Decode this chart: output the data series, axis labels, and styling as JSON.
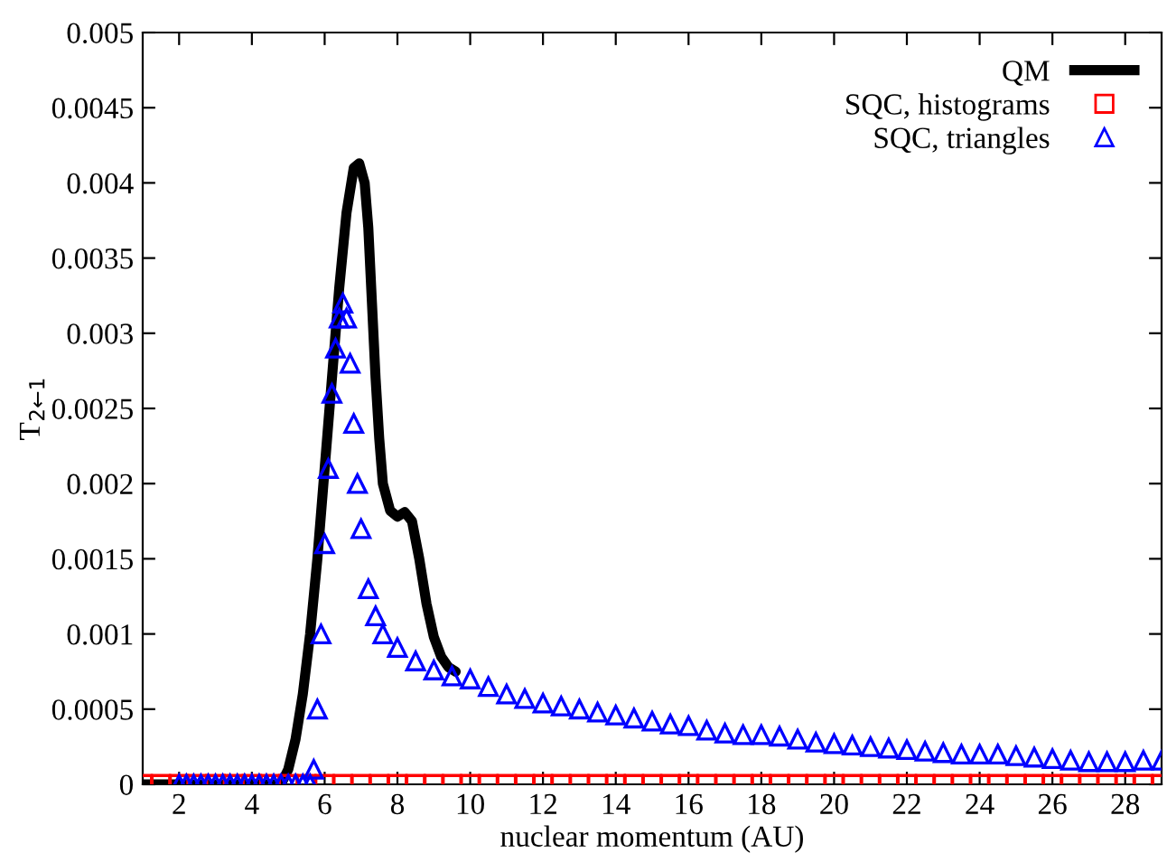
{
  "chart_data": {
    "type": "line",
    "xlabel": "nuclear momentum (AU)",
    "ylabel": "T$_{2←1}$",
    "xlim": [
      1,
      29
    ],
    "xticks": [
      2,
      4,
      6,
      8,
      10,
      12,
      14,
      16,
      18,
      20,
      22,
      24,
      26,
      28
    ],
    "ylim": [
      0,
      0.005
    ],
    "yticks": [
      0,
      0.0005,
      0.001,
      0.0015,
      0.002,
      0.0025,
      0.003,
      0.0035,
      0.004,
      0.0045,
      0.005
    ],
    "grid": false,
    "legend": "top right",
    "series": [
      {
        "name": "QM",
        "color": "#000000",
        "line_style": "solid",
        "marker": "none",
        "x": [
          1,
          1.5,
          2,
          2.5,
          3,
          3.5,
          4,
          4.5,
          4.8,
          5.0,
          5.2,
          5.4,
          5.6,
          5.8,
          6.0,
          6.2,
          6.4,
          6.6,
          6.8,
          6.95,
          7.1,
          7.2,
          7.3,
          7.4,
          7.5,
          7.6,
          7.8,
          8.0,
          8.2,
          8.4,
          8.6,
          8.8,
          9.0,
          9.2,
          9.4,
          9.6
        ],
        "values": [
          0,
          0,
          0,
          0,
          0,
          0,
          0,
          0,
          0,
          0.0001,
          0.0003,
          0.0006,
          0.001,
          0.0015,
          0.0021,
          0.0027,
          0.0033,
          0.0038,
          0.0041,
          0.00413,
          0.004,
          0.0037,
          0.0032,
          0.0027,
          0.0023,
          0.002,
          0.00182,
          0.00178,
          0.00181,
          0.00175,
          0.0015,
          0.0012,
          0.00098,
          0.00085,
          0.00078,
          0.00075
        ]
      },
      {
        "name": "SQC, histograms",
        "type": "scatter",
        "color": "#ff0000",
        "marker": "square",
        "x": [
          1,
          1.5,
          2,
          2.5,
          3,
          3.5,
          4,
          4.5,
          5,
          5.5,
          6,
          6.5,
          7,
          7.5,
          8,
          8.5,
          9,
          9.5,
          10,
          10.5,
          11,
          11.5,
          12,
          12.5,
          13,
          13.5,
          14,
          14.5,
          15,
          15.5,
          16,
          16.5,
          17,
          17.5,
          18,
          18.5,
          19,
          19.5,
          20,
          20.5,
          21,
          21.5,
          22,
          22.5,
          23,
          23.5,
          24,
          24.5,
          25,
          25.5,
          26,
          26.5,
          27,
          27.5,
          28,
          28.5,
          29
        ],
        "values": [
          0,
          0,
          0,
          0,
          0,
          0,
          0,
          0,
          0,
          0,
          0,
          0,
          0,
          0,
          0,
          0,
          0,
          0,
          0,
          0,
          0,
          0,
          0,
          0,
          0,
          0,
          0,
          0,
          0,
          0,
          0,
          0,
          0,
          0,
          0,
          0,
          0,
          0,
          0,
          0,
          0,
          0,
          0,
          0,
          0,
          0,
          0,
          0,
          0,
          0,
          0,
          0,
          0,
          0,
          0,
          0,
          0
        ]
      },
      {
        "name": "SQC, triangles",
        "type": "scatter",
        "color": "#0000ff",
        "marker": "triangle",
        "x": [
          2,
          2.2,
          2.4,
          2.6,
          2.8,
          3,
          3.2,
          3.4,
          3.6,
          3.8,
          4,
          4.2,
          4.4,
          4.6,
          4.8,
          5,
          5.2,
          5.4,
          5.6,
          5.7,
          5.8,
          5.9,
          6.0,
          6.1,
          6.2,
          6.3,
          6.4,
          6.5,
          6.6,
          6.7,
          6.8,
          6.9,
          7.0,
          7.2,
          7.4,
          7.6,
          8.0,
          8.5,
          9,
          9.5,
          10,
          10.5,
          11,
          11.5,
          12,
          12.5,
          13,
          13.5,
          14,
          14.5,
          15,
          15.5,
          16,
          16.5,
          17,
          17.5,
          18,
          18.5,
          19,
          19.5,
          20,
          20.5,
          21,
          21.5,
          22,
          22.5,
          23,
          23.5,
          24,
          24.5,
          25,
          25.5,
          26,
          26.5,
          27,
          27.5,
          28,
          28.5,
          29
        ],
        "values": [
          0,
          0,
          0,
          0,
          0,
          0,
          0,
          0,
          0,
          0,
          0,
          0,
          0,
          0,
          0,
          0,
          0,
          0,
          0,
          0.0001,
          0.0005,
          0.001,
          0.0016,
          0.0021,
          0.0026,
          0.0029,
          0.0031,
          0.0032,
          0.0031,
          0.0028,
          0.0024,
          0.002,
          0.0017,
          0.0013,
          0.00112,
          0.001,
          0.00091,
          0.00082,
          0.00076,
          0.00072,
          0.0007,
          0.00065,
          0.0006,
          0.00057,
          0.00054,
          0.00052,
          0.0005,
          0.00048,
          0.00046,
          0.00044,
          0.00042,
          0.0004,
          0.00039,
          0.00036,
          0.00034,
          0.00033,
          0.00033,
          0.00032,
          0.0003,
          0.00028,
          0.00027,
          0.00026,
          0.00025,
          0.00024,
          0.00023,
          0.00022,
          0.00021,
          0.0002,
          0.0002,
          0.0002,
          0.00019,
          0.00018,
          0.00017,
          0.00016,
          0.00015,
          0.00015,
          0.00015,
          0.00016,
          0.00016
        ]
      }
    ]
  }
}
